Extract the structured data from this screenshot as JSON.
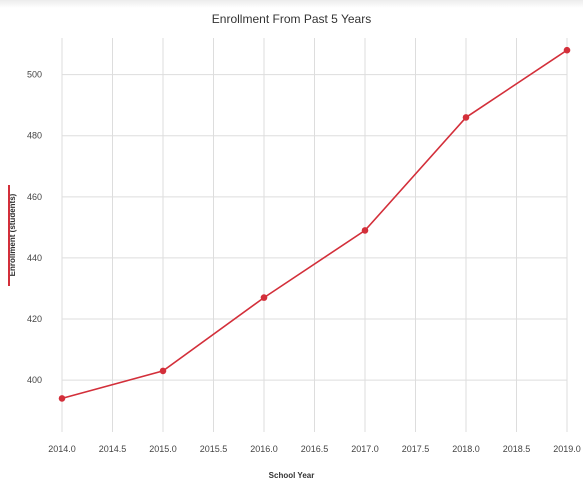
{
  "chart_data": {
    "type": "line",
    "title": "Enrollment From Past 5 Years",
    "xlabel": "School Year",
    "ylabel": "Enrollment (students)",
    "x": [
      2014,
      2015,
      2016,
      2017,
      2018,
      2019
    ],
    "series": [
      {
        "values": [
          394,
          403,
          427,
          449,
          486,
          508
        ]
      }
    ],
    "x_ticks": [
      "2014.0",
      "2014.5",
      "2015.0",
      "2015.5",
      "2016.0",
      "2016.5",
      "2017.0",
      "2017.5",
      "2018.0",
      "2018.5",
      "2019.0"
    ],
    "y_ticks": [
      "400",
      "420",
      "440",
      "460",
      "480",
      "500"
    ],
    "xlim": [
      2014,
      2019
    ],
    "ylim": [
      383,
      512
    ],
    "grid": true,
    "legend": "none",
    "colors": {
      "series": "#d32f3a",
      "grid": "#dddddd"
    }
  }
}
